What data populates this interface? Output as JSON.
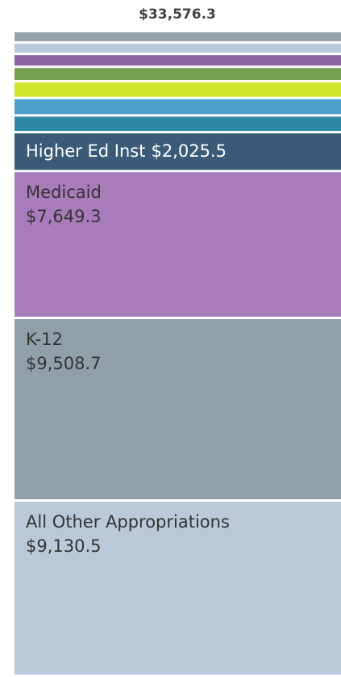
{
  "chart_data": {
    "type": "stacked_bar",
    "total": {
      "value": 33576.3,
      "label": "$33,576.3"
    },
    "segments": [
      {
        "name": "All Other Appropriations",
        "color": "#b9c9da",
        "value": 9130.5,
        "value_label": "$9,130.5"
      },
      {
        "name": "K-12",
        "color": "#8fa0a9",
        "value": 9508.7,
        "value_label": "$9,508.7"
      },
      {
        "name": "Medicaid",
        "color": "#a87bbb",
        "value": 7649.3,
        "value_label": "$7,649.3"
      },
      {
        "name": "Higher Ed Inst",
        "color": "#3a5a78",
        "value": 2025.5,
        "value_label": "$2,025.5"
      },
      {
        "name": null,
        "color": "#2e87a5",
        "value": 871
      },
      {
        "name": null,
        "color": "#4aa0c8",
        "value": 910
      },
      {
        "name": null,
        "color": "#cde82b",
        "value": 870
      },
      {
        "name": null,
        "color": "#76a04f",
        "value": 752
      },
      {
        "name": null,
        "color": "#8b63a3",
        "value": 673
      },
      {
        "name": null,
        "color": "#b9c9da",
        "value": 593
      },
      {
        "name": null,
        "color": "#95a3ab",
        "value": 593
      }
    ]
  }
}
